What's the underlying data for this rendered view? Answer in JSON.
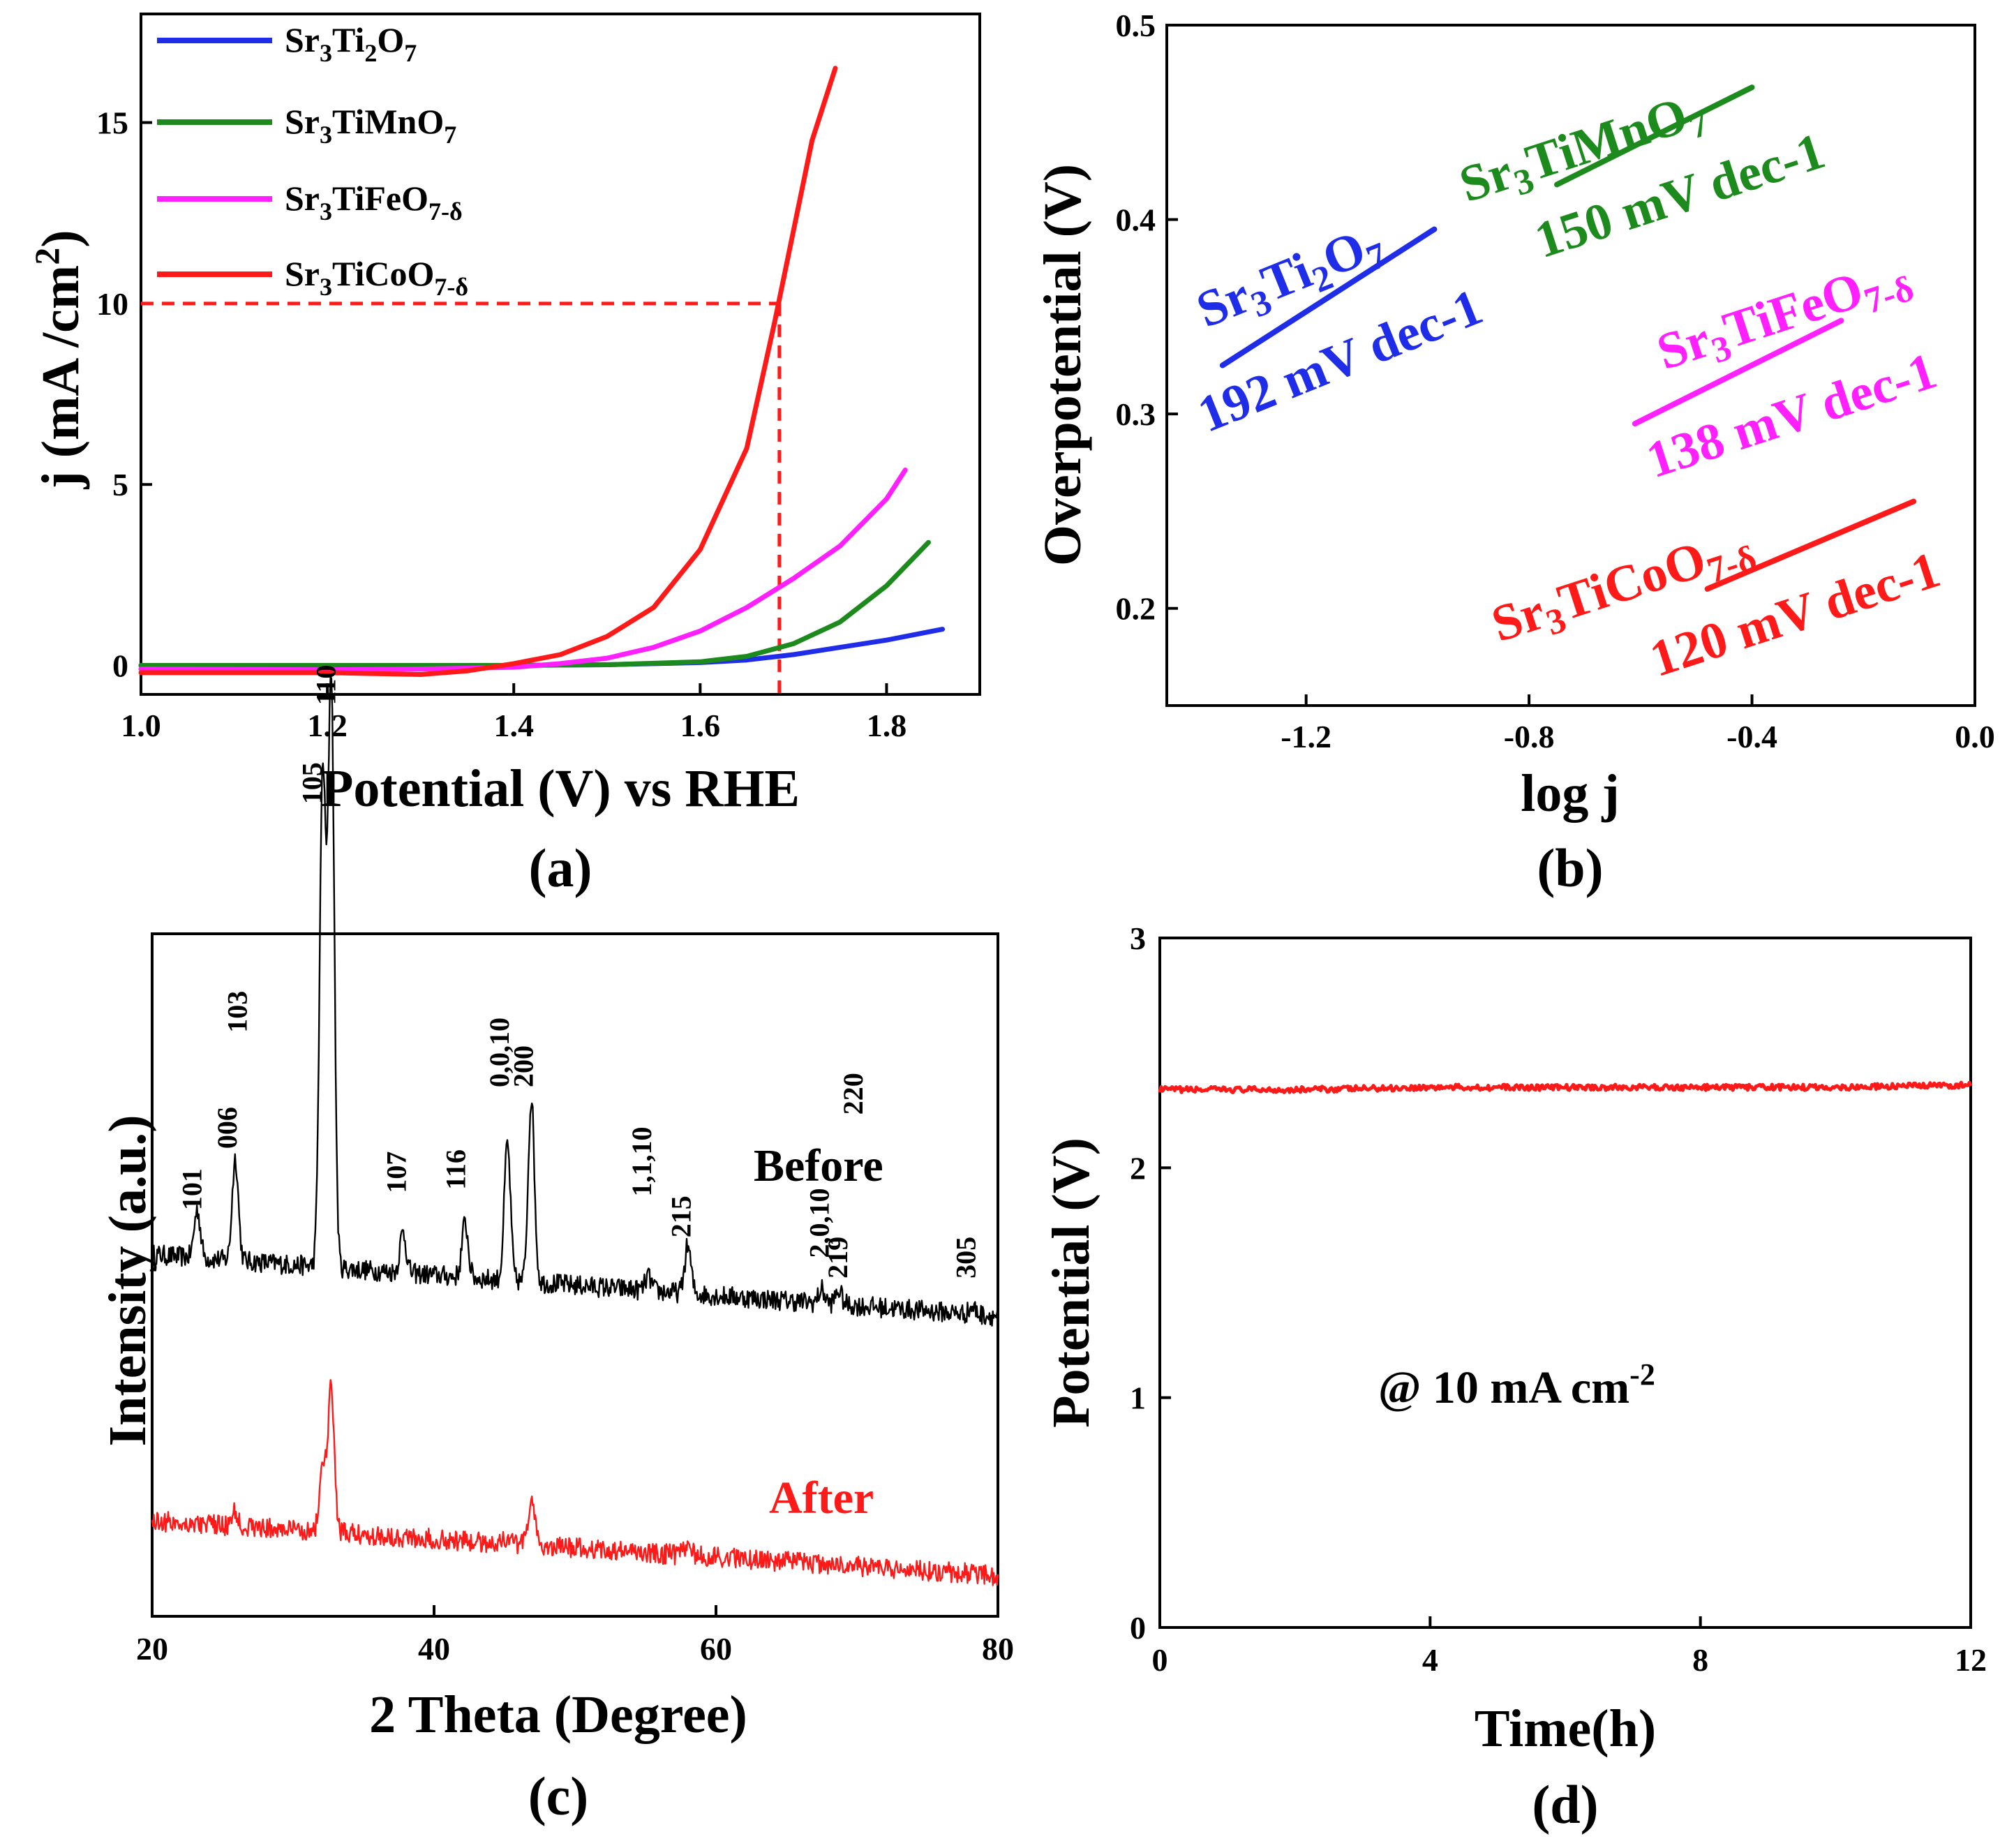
{
  "colors": {
    "blue": "#1f2de8",
    "green": "#1c8a1c",
    "magenta": "#ff1fff",
    "red": "#ff1a1a",
    "black": "#000000"
  },
  "chart_data": [
    {
      "id": "a",
      "type": "line",
      "panel_label": "(a)",
      "xlabel": "Potential (V) vs RHE",
      "ylabel": "j (mA /cm²)",
      "xlim": [
        1.0,
        1.9
      ],
      "ylim": [
        -0.8,
        18
      ],
      "xticks": [
        "1.0",
        "1.2",
        "1.4",
        "1.6",
        "1.8"
      ],
      "yticks": [
        "0",
        "5",
        "10",
        "15"
      ],
      "legend": [
        "Sr3Ti2O7",
        "Sr3TiMnO7",
        "Sr3TiFeO7-δ",
        "Sr3TiCoO7-δ"
      ],
      "reference": {
        "x": 1.685,
        "y": 10
      },
      "series": [
        {
          "name": "Sr3Ti2O7",
          "color": "blue",
          "x": [
            1.0,
            1.2,
            1.4,
            1.5,
            1.6,
            1.65,
            1.7,
            1.75,
            1.8,
            1.86
          ],
          "y": [
            0.0,
            0.0,
            0.0,
            0.02,
            0.08,
            0.15,
            0.3,
            0.5,
            0.7,
            1.0
          ]
        },
        {
          "name": "Sr3TiMnO7",
          "color": "green",
          "x": [
            1.0,
            1.2,
            1.4,
            1.5,
            1.6,
            1.65,
            1.7,
            1.75,
            1.8,
            1.845
          ],
          "y": [
            0.0,
            0.0,
            0.0,
            0.02,
            0.1,
            0.25,
            0.6,
            1.2,
            2.2,
            3.4
          ]
        },
        {
          "name": "Sr3TiFeO7-δ",
          "color": "magenta",
          "x": [
            1.0,
            1.2,
            1.3,
            1.4,
            1.45,
            1.5,
            1.55,
            1.6,
            1.65,
            1.7,
            1.75,
            1.8,
            1.82
          ],
          "y": [
            -0.1,
            -0.12,
            -0.1,
            -0.05,
            0.05,
            0.2,
            0.5,
            0.95,
            1.6,
            2.4,
            3.3,
            4.6,
            5.4
          ]
        },
        {
          "name": "Sr3TiCoO7-δ",
          "color": "red",
          "x": [
            1.0,
            1.1,
            1.2,
            1.3,
            1.35,
            1.4,
            1.45,
            1.5,
            1.55,
            1.6,
            1.65,
            1.68,
            1.7,
            1.72,
            1.745
          ],
          "y": [
            -0.2,
            -0.2,
            -0.2,
            -0.25,
            -0.15,
            0.05,
            0.3,
            0.8,
            1.6,
            3.2,
            6.0,
            9.5,
            12.0,
            14.5,
            16.5
          ]
        }
      ]
    },
    {
      "id": "b",
      "type": "line",
      "panel_label": "(b)",
      "xlabel": "log j",
      "ylabel": "Overpotential (V)",
      "xlim": [
        -1.45,
        0.0
      ],
      "ylim": [
        0.15,
        0.5
      ],
      "xticks": [
        "-1.2",
        "-0.8",
        "-0.4",
        "0.0"
      ],
      "yticks": [
        "0.2",
        "0.3",
        "0.4",
        "0.5"
      ],
      "series": [
        {
          "name": "Sr3Ti2O7",
          "color": "blue",
          "tafel_slope": "192 mV dec-1",
          "x": [
            -1.35,
            -0.97
          ],
          "y": [
            0.325,
            0.395
          ]
        },
        {
          "name": "Sr3TiMnO7",
          "color": "green",
          "tafel_slope": "150 mV dec-1",
          "x": [
            -0.75,
            -0.4
          ],
          "y": [
            0.418,
            0.468
          ]
        },
        {
          "name": "Sr3TiFeO7-δ",
          "color": "magenta",
          "tafel_slope": "138 mV dec-1",
          "x": [
            -0.61,
            -0.24
          ],
          "y": [
            0.295,
            0.348
          ]
        },
        {
          "name": "Sr3TiCoO7-δ",
          "color": "red",
          "tafel_slope": "120 mV dec-1",
          "x": [
            -0.48,
            -0.11
          ],
          "y": [
            0.21,
            0.255
          ]
        }
      ],
      "annotations": [
        {
          "series": "Sr3Ti2O7",
          "label": "Sr3Ti2O7",
          "slope_text": "192 mV dec-1"
        },
        {
          "series": "Sr3TiMnO7",
          "label": "Sr3TiMnO7",
          "slope_text": "150 mV dec-1"
        },
        {
          "series": "Sr3TiFeO7-δ",
          "label": "Sr3TiFeO7-δ",
          "slope_text": "138 mV dec-1"
        },
        {
          "series": "Sr3TiCoO7-δ",
          "label": "Sr3TiCoO7-δ",
          "slope_text": "120 mV dec-1"
        }
      ]
    },
    {
      "id": "c",
      "type": "line",
      "panel_label": "(c)",
      "xlabel": "2 Theta (Degree)",
      "ylabel": "Intensity (a.u.)",
      "xlim": [
        20,
        80
      ],
      "xticks": [
        "20",
        "40",
        "60",
        "80"
      ],
      "series": [
        {
          "name": "Before",
          "color": "black",
          "baseline": 0.53,
          "offset": 0.0
        },
        {
          "name": "After",
          "color": "red",
          "baseline": 0.14,
          "offset": 0.0
        }
      ],
      "peaks": [
        {
          "two_theta": 23.2,
          "label": "101",
          "before": 0.07,
          "after": 0.0
        },
        {
          "two_theta": 25.9,
          "label": "006",
          "before": 0.15,
          "after": 0.02
        },
        {
          "two_theta": 26.6,
          "label": "103",
          "before": 0.0,
          "after": 0.0
        },
        {
          "two_theta": 32.1,
          "label": "105",
          "before": 0.72,
          "after": 0.1
        },
        {
          "two_theta": 32.7,
          "label": "110",
          "before": 0.86,
          "after": 0.21
        },
        {
          "two_theta": 37.8,
          "label": "107",
          "before": 0.06,
          "after": 0.0
        },
        {
          "two_theta": 42.2,
          "label": "116",
          "before": 0.08,
          "after": 0.0
        },
        {
          "two_theta": 45.2,
          "label": "0,0,10",
          "before": 0.2,
          "after": 0.01
        },
        {
          "two_theta": 46.9,
          "label": "200",
          "before": 0.27,
          "after": 0.07
        },
        {
          "two_theta": 55.2,
          "label": "1,1,10",
          "before": 0.02,
          "after": 0.0
        },
        {
          "two_theta": 58.0,
          "label": "215",
          "before": 0.07,
          "after": 0.02
        },
        {
          "two_theta": 67.5,
          "label": "2,0,10",
          "before": 0.02,
          "after": 0.0
        },
        {
          "two_theta": 68.7,
          "label": "219",
          "before": 0.02,
          "after": 0.0
        },
        {
          "two_theta": 69.3,
          "label": "220",
          "before": 0.0,
          "after": 0.0
        },
        {
          "two_theta": 78.2,
          "label": "305",
          "before": 0.01,
          "after": 0.0
        }
      ],
      "tags": {
        "before": "Before",
        "after": "After"
      }
    },
    {
      "id": "d",
      "type": "line",
      "panel_label": "(d)",
      "xlabel": "Time(h)",
      "ylabel": "Potential (V)",
      "xlim": [
        0,
        12
      ],
      "ylim": [
        0,
        3
      ],
      "xticks": [
        "0",
        "4",
        "8",
        "12"
      ],
      "yticks": [
        "0",
        "1",
        "2",
        "3"
      ],
      "annotation": "@ 10 mA cm⁻²",
      "series": [
        {
          "name": "Sr3TiCoO7-δ",
          "color": "red",
          "x": [
            0,
            2,
            4,
            6,
            8,
            10,
            12
          ],
          "y": [
            2.34,
            2.34,
            2.35,
            2.35,
            2.35,
            2.35,
            2.36
          ]
        }
      ]
    }
  ]
}
